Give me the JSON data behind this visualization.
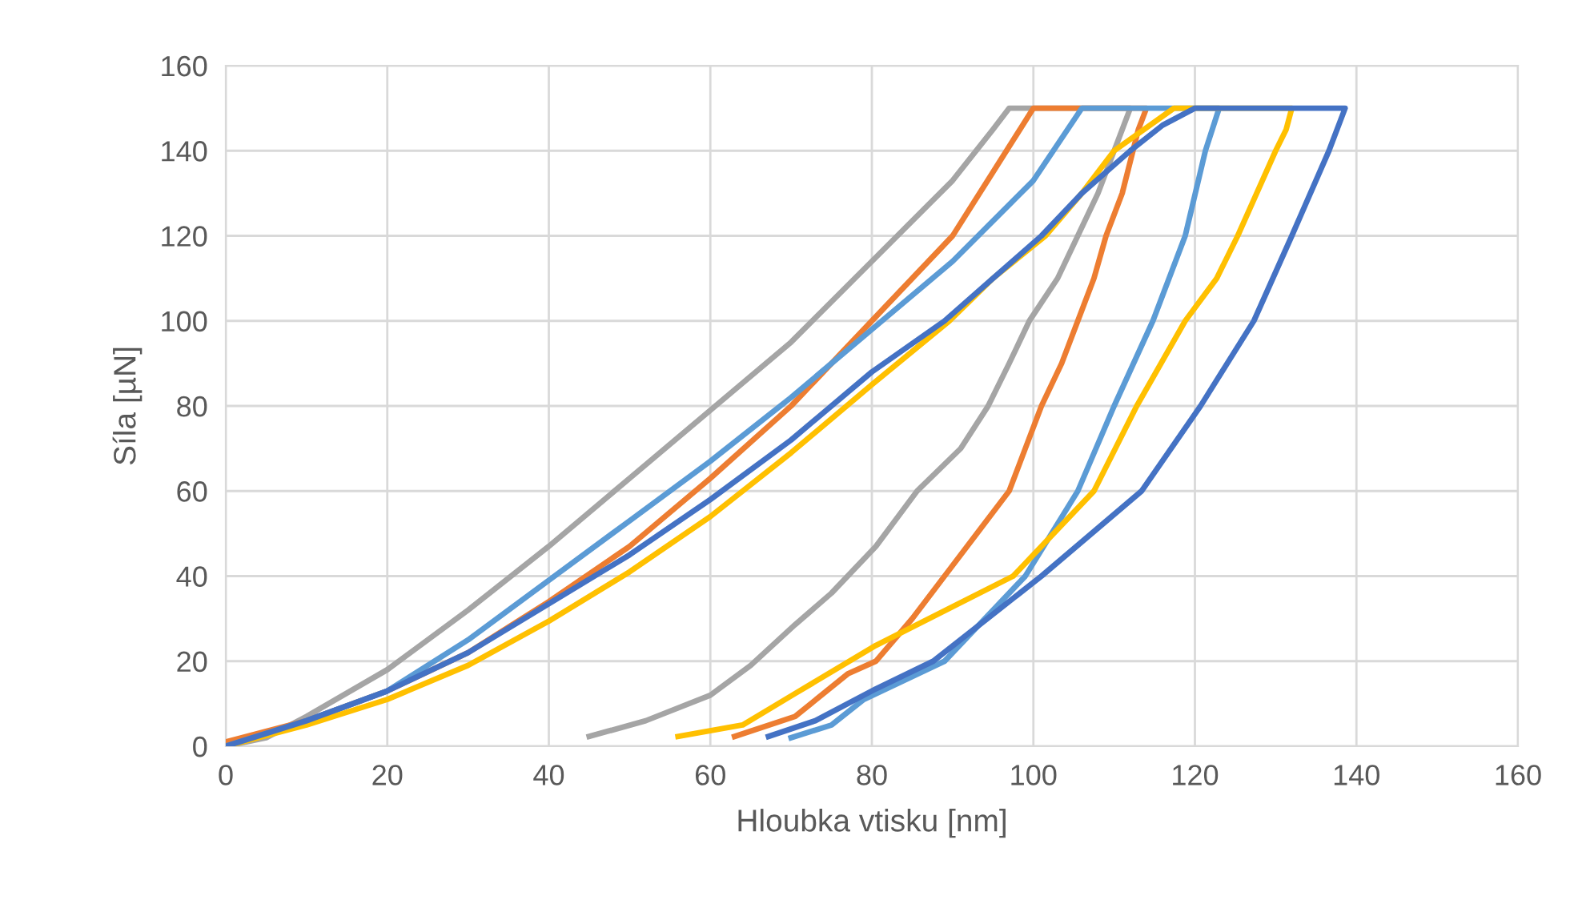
{
  "chart_data": {
    "type": "line",
    "xlabel": "Hloubka vtisku [nm]",
    "ylabel": "Síla [µN]",
    "xlim": [
      0,
      160
    ],
    "ylim": [
      0,
      160
    ],
    "xticks": [
      0,
      20,
      40,
      60,
      80,
      100,
      120,
      140,
      160
    ],
    "yticks": [
      0,
      20,
      40,
      60,
      80,
      100,
      120,
      140,
      160
    ],
    "grid": true,
    "marker": "none",
    "line_style": "solid",
    "series": [
      {
        "color": "#a5a5a5",
        "x": [
          0,
          5,
          10,
          20,
          30,
          40,
          50,
          60,
          70,
          80,
          90,
          95,
          97,
          112,
          111,
          110,
          108,
          105.5,
          103,
          99.5,
          97,
          94.4,
          91,
          85.6,
          80.5,
          75,
          70.5,
          65,
          60,
          52,
          45
        ],
        "values": [
          0,
          2,
          7,
          18,
          32,
          47,
          63,
          79,
          95,
          114,
          133,
          145,
          150,
          150,
          145,
          140,
          130,
          120,
          110,
          100,
          90,
          80,
          70,
          60,
          47,
          36,
          28.6,
          19,
          12,
          6,
          2.3
        ]
      },
      {
        "color": "#ed7d31",
        "x": [
          0,
          10,
          20,
          30,
          40,
          50,
          60,
          70,
          80,
          90,
          95,
          100,
          114,
          113,
          111,
          109,
          107.5,
          105.5,
          103.5,
          101,
          99,
          97,
          93,
          89,
          85,
          80.5,
          77,
          70.5,
          63
        ],
        "values": [
          1,
          6,
          13,
          22,
          34,
          47,
          63,
          80,
          100,
          120,
          135,
          150,
          150,
          145,
          130,
          120,
          110,
          100,
          90,
          80,
          70,
          60,
          50,
          40,
          30,
          20,
          17,
          7,
          2.3
        ]
      },
      {
        "color": "#5b9bd5",
        "x": [
          0,
          10,
          20,
          30,
          40,
          50,
          60,
          70,
          80,
          90,
          100,
          106,
          123,
          121.3,
          118.8,
          114.8,
          110,
          105.5,
          99,
          89,
          79,
          75,
          70
        ],
        "values": [
          0,
          6,
          13,
          25,
          39,
          53,
          67,
          82,
          98,
          114,
          133,
          150,
          150,
          140,
          120,
          100,
          80,
          60,
          40,
          20,
          11,
          5,
          2
        ]
      },
      {
        "color": "#ffc000",
        "x": [
          0,
          10,
          20,
          30,
          40,
          50,
          60,
          70,
          80,
          89.6,
          95,
          101.5,
          106,
          110,
          117.4,
          132,
          131.3,
          130,
          125.3,
          122.7,
          118.8,
          112.8,
          107.5,
          97.5,
          80.5,
          70.5,
          64,
          56
        ],
        "values": [
          0,
          5,
          11,
          19,
          29.4,
          41,
          54,
          69,
          85,
          100,
          110,
          120,
          130,
          140,
          150,
          150,
          145,
          140,
          120,
          110,
          100,
          80,
          60,
          40,
          23.7,
          12.4,
          5,
          2.3
        ]
      },
      {
        "color": "#4472c4",
        "x": [
          0,
          10,
          20,
          30,
          40,
          50,
          60,
          70,
          80,
          89,
          95,
          101,
          106,
          112,
          116,
          120,
          138.6,
          136.6,
          132,
          127.3,
          120.7,
          113.4,
          101,
          87.6,
          80.5,
          73,
          67.2
        ],
        "values": [
          0,
          6,
          13,
          22,
          33.5,
          45,
          58,
          72,
          88,
          100,
          110,
          120,
          130,
          140,
          146,
          150,
          150,
          140,
          120,
          100,
          80,
          60,
          40,
          20,
          13.5,
          6,
          2.3
        ]
      }
    ]
  }
}
